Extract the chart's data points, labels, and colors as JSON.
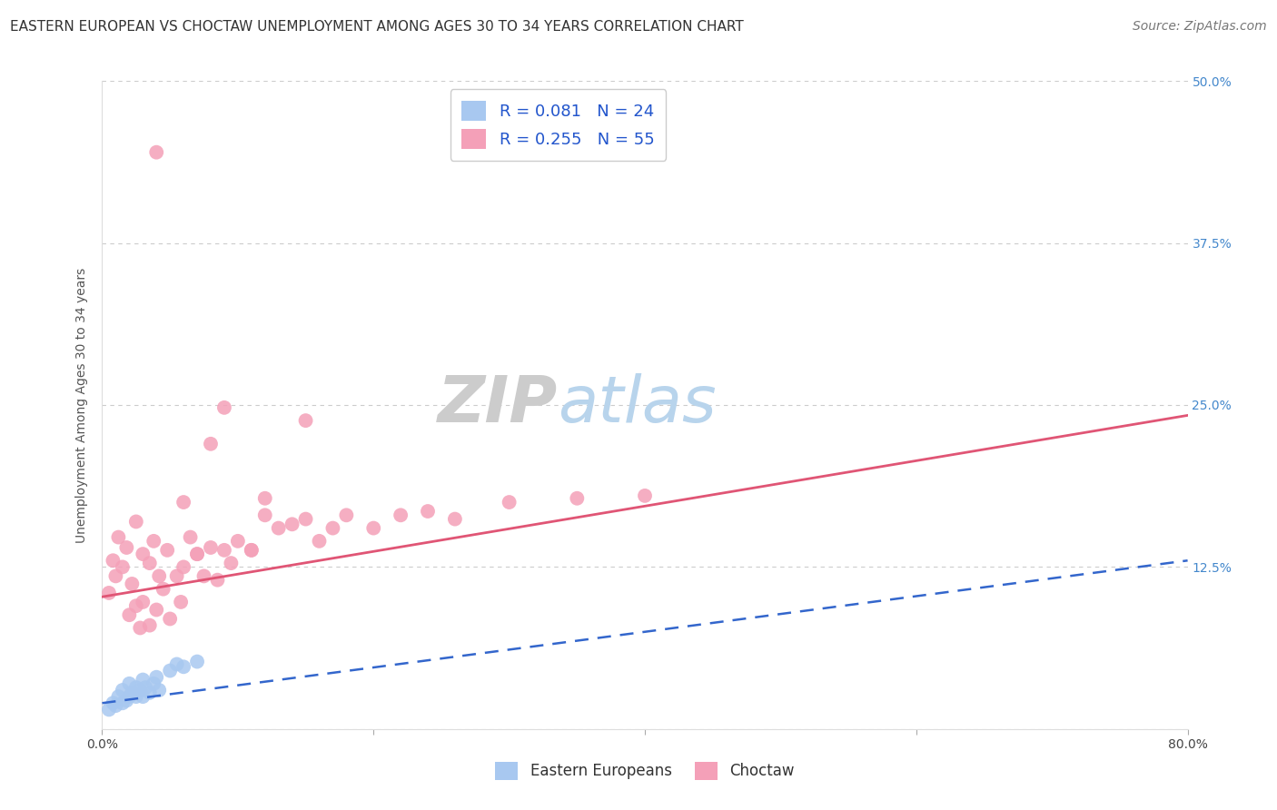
{
  "title": "EASTERN EUROPEAN VS CHOCTAW UNEMPLOYMENT AMONG AGES 30 TO 34 YEARS CORRELATION CHART",
  "source": "Source: ZipAtlas.com",
  "ylabel": "Unemployment Among Ages 30 to 34 years",
  "xlim": [
    0.0,
    0.8
  ],
  "ylim": [
    0.0,
    0.5
  ],
  "xticks": [
    0.0,
    0.2,
    0.4,
    0.6,
    0.8
  ],
  "xticklabels": [
    "0.0%",
    "",
    "",
    "",
    "80.0%"
  ],
  "yticks": [
    0.0,
    0.125,
    0.25,
    0.375,
    0.5
  ],
  "yticklabels": [
    "",
    "12.5%",
    "25.0%",
    "37.5%",
    "50.0%"
  ],
  "legend_labels": [
    "Eastern Europeans",
    "Choctaw"
  ],
  "legend_r": [
    "R = 0.081",
    "R = 0.255"
  ],
  "legend_n": [
    "N = 24",
    "N = 55"
  ],
  "blue_color": "#a8c8f0",
  "pink_color": "#f4a0b8",
  "blue_line_color": "#3366cc",
  "pink_line_color": "#e05575",
  "watermark_zip": "ZIP",
  "watermark_atlas": "atlas",
  "blue_scatter_x": [
    0.005,
    0.008,
    0.01,
    0.012,
    0.015,
    0.015,
    0.018,
    0.02,
    0.02,
    0.022,
    0.025,
    0.025,
    0.028,
    0.03,
    0.03,
    0.032,
    0.035,
    0.038,
    0.04,
    0.042,
    0.05,
    0.055,
    0.06,
    0.07
  ],
  "blue_scatter_y": [
    0.015,
    0.02,
    0.018,
    0.025,
    0.02,
    0.03,
    0.022,
    0.025,
    0.035,
    0.028,
    0.025,
    0.032,
    0.03,
    0.025,
    0.038,
    0.032,
    0.028,
    0.035,
    0.04,
    0.03,
    0.045,
    0.05,
    0.048,
    0.052
  ],
  "pink_scatter_x": [
    0.005,
    0.008,
    0.01,
    0.012,
    0.015,
    0.018,
    0.02,
    0.022,
    0.025,
    0.025,
    0.028,
    0.03,
    0.03,
    0.035,
    0.038,
    0.04,
    0.042,
    0.045,
    0.048,
    0.05,
    0.055,
    0.058,
    0.06,
    0.065,
    0.07,
    0.075,
    0.08,
    0.085,
    0.09,
    0.095,
    0.1,
    0.11,
    0.12,
    0.13,
    0.14,
    0.15,
    0.16,
    0.17,
    0.18,
    0.2,
    0.22,
    0.24,
    0.26,
    0.3,
    0.35,
    0.4,
    0.08,
    0.04,
    0.06,
    0.12,
    0.15,
    0.09,
    0.11,
    0.035,
    0.07
  ],
  "pink_scatter_y": [
    0.105,
    0.13,
    0.118,
    0.148,
    0.125,
    0.14,
    0.088,
    0.112,
    0.095,
    0.16,
    0.078,
    0.135,
    0.098,
    0.08,
    0.145,
    0.092,
    0.118,
    0.108,
    0.138,
    0.085,
    0.118,
    0.098,
    0.125,
    0.148,
    0.135,
    0.118,
    0.14,
    0.115,
    0.138,
    0.128,
    0.145,
    0.138,
    0.165,
    0.155,
    0.158,
    0.162,
    0.145,
    0.155,
    0.165,
    0.155,
    0.165,
    0.168,
    0.162,
    0.175,
    0.178,
    0.18,
    0.22,
    0.445,
    0.175,
    0.178,
    0.238,
    0.248,
    0.138,
    0.128,
    0.135
  ],
  "title_fontsize": 11,
  "axis_label_fontsize": 10,
  "tick_fontsize": 10,
  "legend_fontsize": 13,
  "watermark_fontsize": 52,
  "background_color": "#ffffff",
  "grid_color": "#cccccc",
  "source_fontsize": 10,
  "pink_line_x0": 0.0,
  "pink_line_y0": 0.102,
  "pink_line_x1": 0.8,
  "pink_line_y1": 0.242,
  "blue_line_x0": 0.0,
  "blue_line_y0": 0.02,
  "blue_line_x1": 0.8,
  "blue_line_y1": 0.13
}
